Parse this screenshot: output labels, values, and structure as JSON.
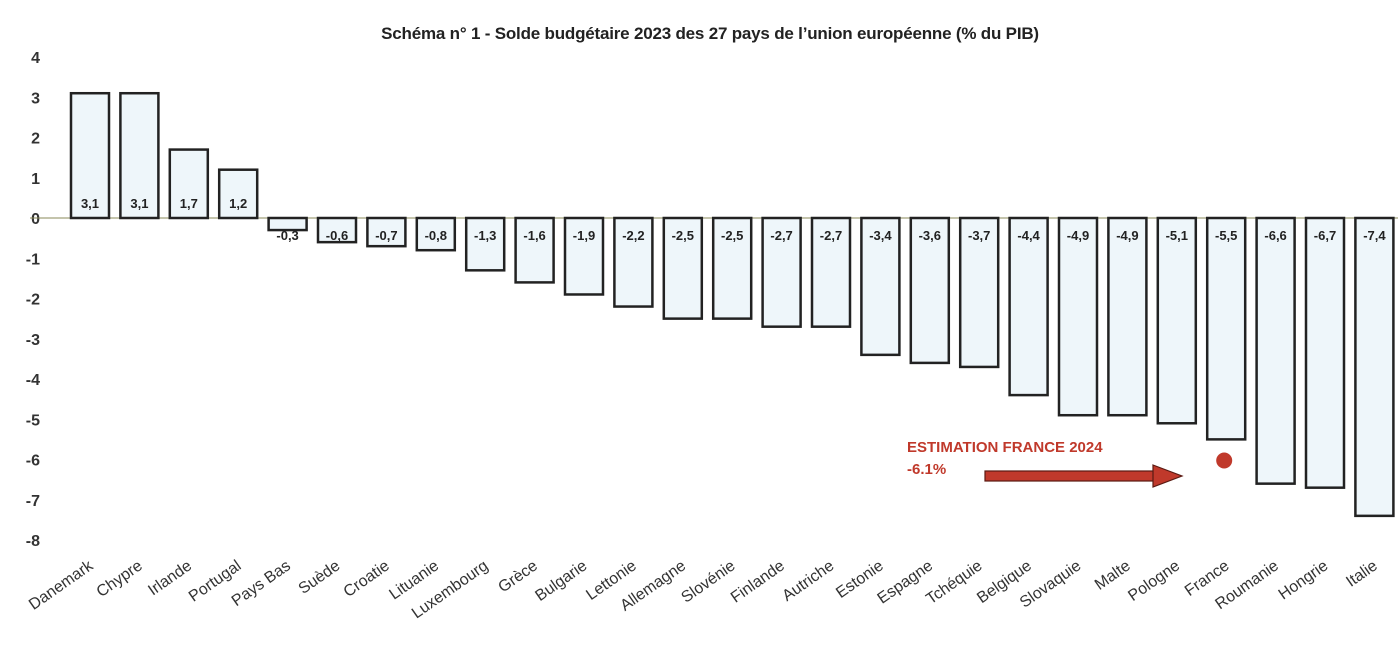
{
  "chart_data": {
    "type": "bar",
    "title": "Schéma n° 1 - Solde budgétaire 2023 des 27 pays de l’union européenne (% du PIB)",
    "xlabel": "",
    "ylabel": "",
    "ylim": [
      -8,
      4
    ],
    "yticks": [
      "4",
      "3",
      "2",
      "1",
      "0",
      "-1",
      "-2",
      "-3",
      "-4",
      "-5",
      "-6",
      "-7",
      "-8"
    ],
    "grid": false,
    "categories": [
      "Danemark",
      "Chypre",
      "Irlande",
      "Portugal",
      "Pays Bas",
      "Suède",
      "Croatie",
      "Lituanie",
      "Luxembourg",
      "Grèce",
      "Bulgarie",
      "Lettonie",
      "Allemagne",
      "Slovénie",
      "Finlande",
      "Autriche",
      "Estonie",
      "Espagne",
      "Tchéquie",
      "Belgique",
      "Slovaquie",
      "Malte",
      "Pologne",
      "France",
      "Roumanie",
      "Hongrie",
      "Italie"
    ],
    "values": [
      3.1,
      3.1,
      1.7,
      1.2,
      -0.3,
      -0.6,
      -0.7,
      -0.8,
      -1.3,
      -1.6,
      -1.9,
      -2.2,
      -2.5,
      -2.5,
      -2.7,
      -2.7,
      -3.4,
      -3.6,
      -3.7,
      -4.4,
      -4.9,
      -4.9,
      -5.1,
      -5.5,
      -6.6,
      -6.7,
      -7.4
    ],
    "data_labels": [
      "3,1",
      "3,1",
      "1,7",
      "1,2",
      "-0,3",
      "-0,6",
      "-0,7",
      "-0,8",
      "-1,3",
      "-1,6",
      "-1,9",
      "-2,2",
      "-2,5",
      "-2,5",
      "-2,7",
      "-2,7",
      "-3,4",
      "-3,6",
      "-3,7",
      "-4,4",
      "-4,9",
      "-4,9",
      "-5,1",
      "-5,5",
      "-6,6",
      "-6,7",
      "-7,4"
    ],
    "annotation": {
      "line1": "ESTIMATION FRANCE 2024",
      "line2": "-6.1%",
      "category": "France",
      "value": -6.1,
      "color": "#c0392b"
    },
    "colors": {
      "bar_fill": "#eef6fa",
      "bar_stroke": "#222222",
      "zero_line": "#8a8a5a"
    }
  }
}
